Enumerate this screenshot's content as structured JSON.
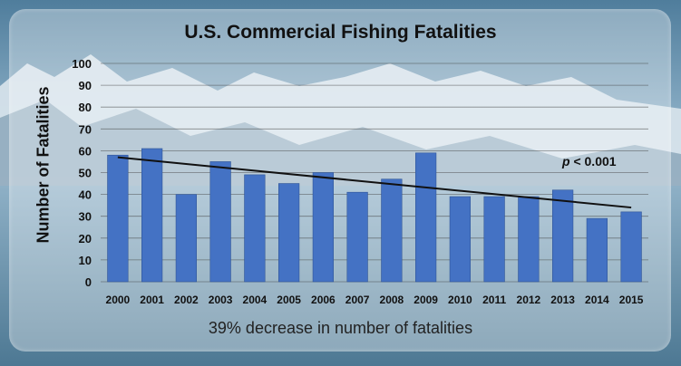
{
  "colors": {
    "bar": "#4472c4",
    "bar_edge": "#2f5597",
    "trendline": "#111111",
    "grid": "#444444"
  },
  "chart_data": {
    "type": "bar",
    "title": "U.S. Commercial Fishing Fatalities",
    "xlabel": "",
    "ylabel": "Number of Fatalities",
    "ylim": [
      0,
      100
    ],
    "yticks": [
      0,
      10,
      20,
      30,
      40,
      50,
      60,
      70,
      80,
      90,
      100
    ],
    "grid": true,
    "categories": [
      "2000",
      "2001",
      "2002",
      "2003",
      "2004",
      "2005",
      "2006",
      "2007",
      "2008",
      "2009",
      "2010",
      "2011",
      "2012",
      "2013",
      "2014",
      "2015"
    ],
    "values": [
      58,
      61,
      40,
      55,
      49,
      45,
      50,
      41,
      47,
      59,
      39,
      39,
      39,
      42,
      29,
      32
    ],
    "trendline": {
      "type": "linear",
      "start": [
        "2000",
        57
      ],
      "end": [
        "2015",
        34
      ]
    },
    "annotations": {
      "p_symbol": "p",
      "p_text": " < 0.001"
    },
    "caption": "39% decrease in number of fatalities"
  }
}
